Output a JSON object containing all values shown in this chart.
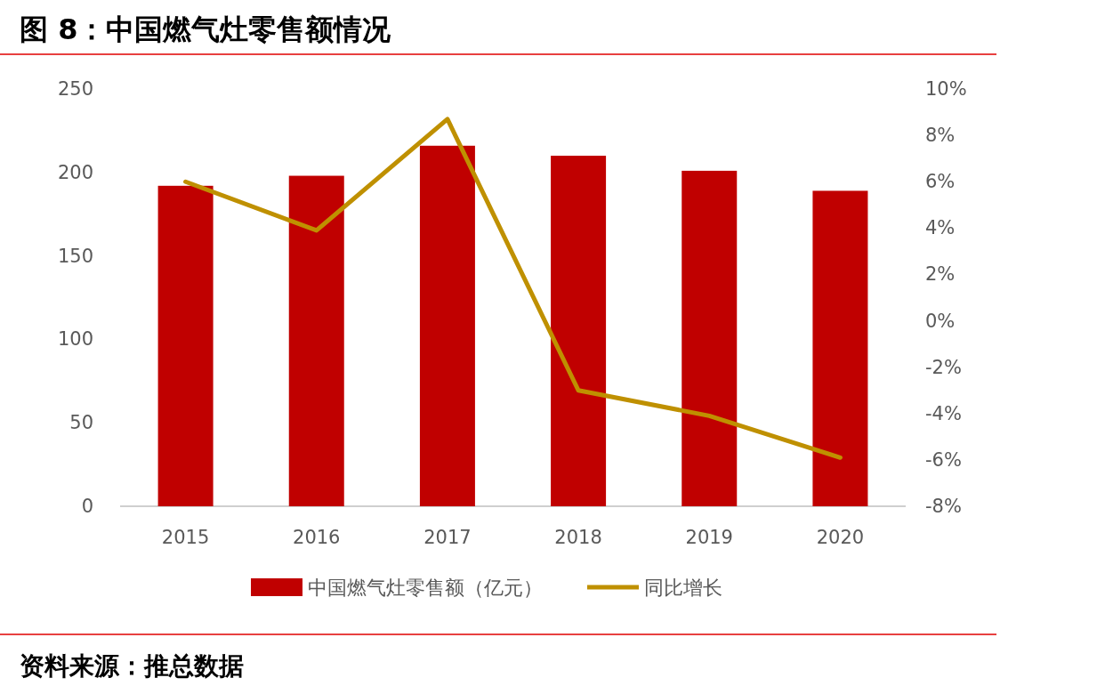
{
  "chart_data": {
    "type": "bar",
    "title": "图 8：中国燃气灶零售额情况",
    "categories": [
      "2015",
      "2016",
      "2017",
      "2018",
      "2019",
      "2020"
    ],
    "series": [
      {
        "name": "中国燃气灶零售额（亿元）",
        "color": "#c00000",
        "values": [
          192,
          198,
          216,
          210,
          201,
          189
        ]
      },
      {
        "name": "同比增长",
        "type": "line",
        "axis": "y2",
        "color": "#bf9000",
        "values": [
          6.0,
          3.9,
          8.7,
          -3.0,
          -4.1,
          -5.9
        ]
      }
    ],
    "ylim": [
      0,
      250
    ],
    "yticks": [
      0,
      50,
      100,
      150,
      200,
      250
    ],
    "y2lim": [
      -8,
      10
    ],
    "y2ticks": [
      {
        "value": -8,
        "label": "-8%"
      },
      {
        "value": -6,
        "label": "-6%"
      },
      {
        "value": -4,
        "label": "-4%"
      },
      {
        "value": -2,
        "label": "-2%"
      },
      {
        "value": 0,
        "label": "0%"
      },
      {
        "value": 2,
        "label": "2%"
      },
      {
        "value": 4,
        "label": "4%"
      },
      {
        "value": 6,
        "label": "6%"
      },
      {
        "value": 8,
        "label": "8%"
      },
      {
        "value": 10,
        "label": "10%"
      }
    ],
    "grid": false,
    "legend": "bottom",
    "annotations": [
      "资料来源：推总数据"
    ]
  }
}
